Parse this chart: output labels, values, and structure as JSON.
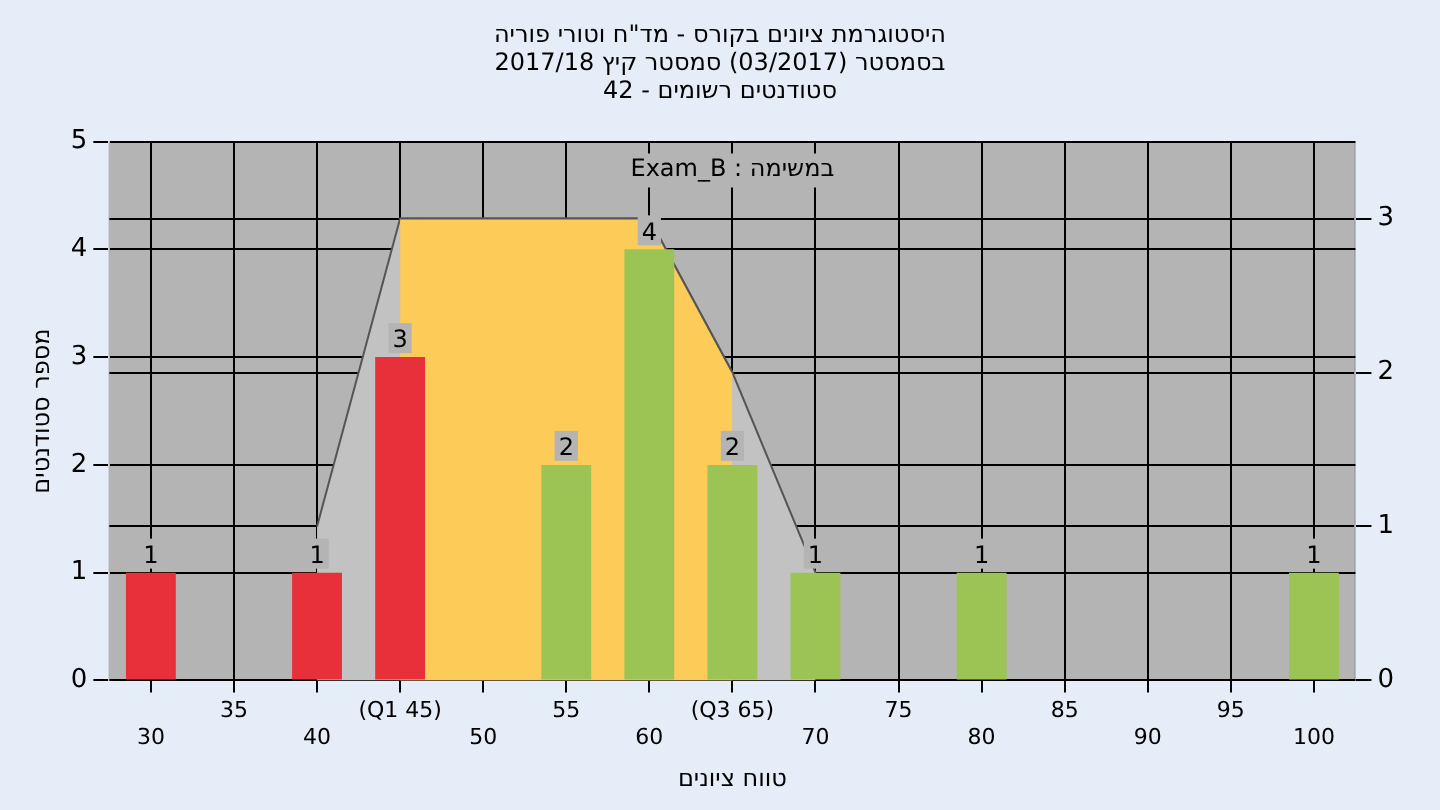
{
  "chart_data": {
    "type": "bar",
    "title": "היסטוגרמת ציונים בקורס - מד\"ח וטורי פוריה",
    "subtitle": "בסמסטר  (03/2017)  סמסטר קיץ  2017/18\nסטודנטים רשומים - 42",
    "xlabel": "טווח ציונים",
    "ylabel": "מספר סטודנטים",
    "annotations": [
      "Exam_B : במשימה"
    ],
    "categories": [
      "30",
      "35",
      "40",
      "(Q1 45)",
      "50",
      "55",
      "60",
      "(Q3 65)",
      "70",
      "75",
      "80",
      "85",
      "90",
      "95",
      "100"
    ],
    "series": [
      {
        "type": "area",
        "axis": "y2",
        "color": "#c2c2c2",
        "values": [
          null,
          null,
          1,
          3,
          3,
          3,
          3,
          2,
          0.7,
          null,
          null,
          null,
          null,
          null,
          null
        ]
      },
      {
        "type": "area",
        "axis": "y2",
        "color": "#fdcb58",
        "values": [
          null,
          null,
          null,
          3,
          3,
          3,
          3,
          2,
          null,
          null,
          null,
          null,
          null,
          null,
          null
        ]
      },
      {
        "values": [
          1,
          0,
          1,
          3,
          0,
          2,
          4,
          2,
          1,
          0,
          1,
          0,
          0,
          0,
          1
        ],
        "colors": [
          "#e8303a",
          "#9cc454",
          "#e8303a",
          "#e8303a",
          "#9cc454",
          "#9cc454",
          "#9cc454",
          "#9cc454",
          "#9cc454",
          "#9cc454",
          "#9cc454",
          "#9cc454",
          "#9cc454",
          "#9cc454",
          "#9cc454"
        ],
        "value_labels": [
          "1",
          null,
          "1",
          "3",
          null,
          "2",
          "4",
          "2",
          "1",
          null,
          "1",
          null,
          null,
          null,
          "1"
        ]
      }
    ],
    "ylim": [
      0,
      5
    ],
    "yticks": [
      0,
      1,
      2,
      3,
      4,
      5
    ],
    "y2lim": [
      0,
      3.5
    ],
    "y2ticks": [
      0,
      1,
      2,
      3
    ],
    "grid": true,
    "legend": false
  }
}
